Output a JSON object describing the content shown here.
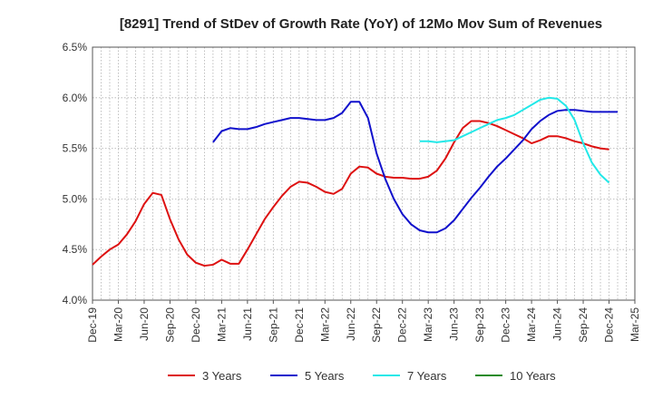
{
  "chart_data": {
    "type": "line",
    "title": "[8291]  Trend of StDev of Growth Rate (YoY) of 12Mo Mov Sum of Revenues",
    "xlabel": "",
    "ylabel": "",
    "ylim": [
      4.0,
      6.5
    ],
    "y_ticks": [
      4.0,
      4.5,
      5.0,
      5.5,
      6.0,
      6.5
    ],
    "y_tick_labels": [
      "4.0%",
      "4.5%",
      "5.0%",
      "5.5%",
      "6.0%",
      "6.5%"
    ],
    "x_ticks": [
      "Dec-19",
      "Mar-20",
      "Jun-20",
      "Sep-20",
      "Dec-20",
      "Mar-21",
      "Jun-21",
      "Sep-21",
      "Dec-21",
      "Mar-22",
      "Jun-22",
      "Sep-22",
      "Dec-22",
      "Mar-23",
      "Jun-23",
      "Sep-23",
      "Dec-23",
      "Mar-24",
      "Jun-24",
      "Sep-24",
      "Dec-24",
      "Mar-25"
    ],
    "x_range_months": [
      0,
      63
    ],
    "grid": true,
    "legend_position": "bottom",
    "series": [
      {
        "name": "3 Years",
        "color": "#dd1111",
        "start_month": 0,
        "values": [
          4.35,
          4.43,
          4.5,
          4.55,
          4.65,
          4.78,
          4.95,
          5.06,
          5.04,
          4.8,
          4.6,
          4.45,
          4.37,
          4.34,
          4.35,
          4.4,
          4.36,
          4.36,
          4.5,
          4.65,
          4.8,
          4.92,
          5.03,
          5.12,
          5.17,
          5.16,
          5.12,
          5.07,
          5.05,
          5.1,
          5.25,
          5.32,
          5.31,
          5.25,
          5.22,
          5.21,
          5.21,
          5.2,
          5.2,
          5.22,
          5.28,
          5.4,
          5.56,
          5.7,
          5.77,
          5.77,
          5.75,
          5.72,
          5.68,
          5.64,
          5.6,
          5.55,
          5.58,
          5.62,
          5.62,
          5.6,
          5.57,
          5.55,
          5.52,
          5.5,
          5.49
        ]
      },
      {
        "name": "5 Years",
        "color": "#1111cc",
        "start_month": 14,
        "values": [
          5.56,
          5.67,
          5.7,
          5.69,
          5.69,
          5.71,
          5.74,
          5.76,
          5.78,
          5.8,
          5.8,
          5.79,
          5.78,
          5.78,
          5.8,
          5.85,
          5.96,
          5.96,
          5.8,
          5.45,
          5.2,
          5.0,
          4.85,
          4.75,
          4.69,
          4.67,
          4.67,
          4.71,
          4.79,
          4.9,
          5.01,
          5.11,
          5.22,
          5.32,
          5.4,
          5.49,
          5.58,
          5.69,
          5.77,
          5.83,
          5.87,
          5.88,
          5.88,
          5.87,
          5.86,
          5.86,
          5.86,
          5.86
        ]
      },
      {
        "name": "7 Years",
        "color": "#22e8e8",
        "start_month": 38,
        "values": [
          5.57,
          5.57,
          5.56,
          5.57,
          5.58,
          5.62,
          5.66,
          5.7,
          5.74,
          5.78,
          5.8,
          5.83,
          5.88,
          5.93,
          5.98,
          6.0,
          5.99,
          5.92,
          5.78,
          5.55,
          5.36,
          5.24,
          5.16
        ]
      },
      {
        "name": "10 Years",
        "color": "#228b22",
        "start_month": 0,
        "values": []
      }
    ]
  }
}
